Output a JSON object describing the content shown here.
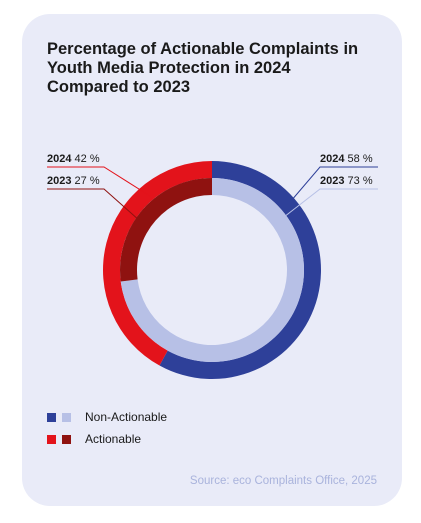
{
  "chart_data": {
    "type": "pie",
    "title": "Percentage of Actionable Complaints in Youth Media Protection in 2024 Compared to 2023",
    "categories": [
      "Non-Actionable",
      "Actionable"
    ],
    "series": [
      {
        "name": "2024",
        "values": [
          58,
          42
        ],
        "colors": [
          "#2e4099",
          "#e3131b"
        ]
      },
      {
        "name": "2023",
        "values": [
          73,
          27
        ],
        "colors": [
          "#b7c0e6",
          "#8f1210"
        ]
      }
    ],
    "legend": [
      "Non-Actionable",
      "Actionable"
    ],
    "legend_placement": "bottom-left"
  },
  "labels": {
    "y2024_act": {
      "year": "2024",
      "pct": "42 %"
    },
    "y2023_act": {
      "year": "2023",
      "pct": "27 %"
    },
    "y2024_non": {
      "year": "2024",
      "pct": "58 %"
    },
    "y2023_non": {
      "year": "2023",
      "pct": "73 %"
    }
  },
  "legend_items": [
    {
      "label": "Non-Actionable",
      "colors": [
        "#2e4099",
        "#b7c0e6"
      ]
    },
    {
      "label": "Actionable",
      "colors": [
        "#e3131b",
        "#8f1210"
      ]
    }
  ],
  "source": "Source: eco Complaints Office, 2025"
}
